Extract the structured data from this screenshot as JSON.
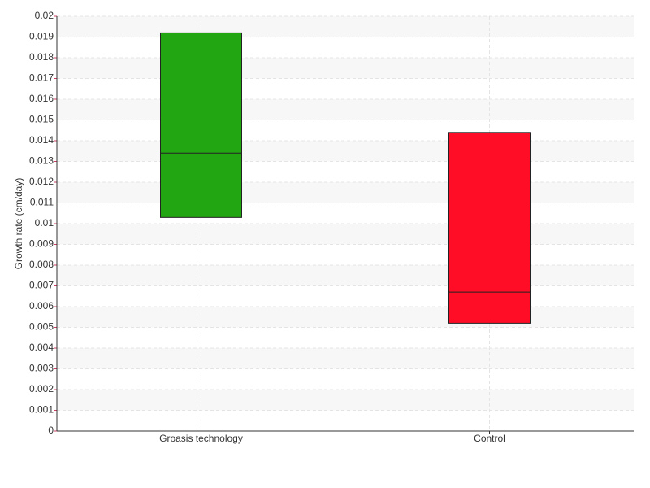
{
  "chart_data": {
    "type": "box",
    "y_label": "Growth rate (cm/day)",
    "categories": [
      "Groasis technology",
      "Control"
    ],
    "boxes": [
      {
        "low": 0.0103,
        "median": 0.0134,
        "high": 0.0192,
        "color": "#22a611"
      },
      {
        "low": 0.0052,
        "median": 0.0067,
        "high": 0.0144,
        "color": "#ff0c26"
      }
    ],
    "ylim": [
      0,
      0.02
    ],
    "yticks": [
      0,
      0.001,
      0.002,
      0.003,
      0.004,
      0.005,
      0.006,
      0.007,
      0.008,
      0.009,
      0.01,
      0.011,
      0.012,
      0.013,
      0.014,
      0.015,
      0.016,
      0.017,
      0.018,
      0.019,
      0.02
    ],
    "grid": true
  }
}
